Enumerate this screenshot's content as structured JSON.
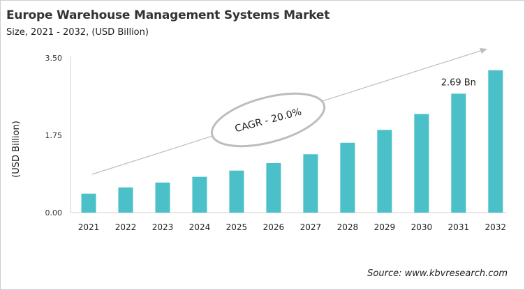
{
  "chart_data": {
    "type": "bar",
    "title": "Europe Warehouse Management Systems Market",
    "subtitle": "Size, 2021 - 2032, (USD Billion)",
    "ylabel": "(USD Billion)",
    "xlabel": "",
    "categories": [
      "2021",
      "2022",
      "2023",
      "2024",
      "2025",
      "2026",
      "2027",
      "2028",
      "2029",
      "2030",
      "2031",
      "2032"
    ],
    "values": [
      0.43,
      0.57,
      0.68,
      0.81,
      0.95,
      1.12,
      1.32,
      1.58,
      1.87,
      2.23,
      2.69,
      3.22
    ],
    "ylim": [
      0,
      3.5
    ],
    "yticks": [
      "0.00",
      "1.75",
      "3.50"
    ],
    "data_labels": [
      {
        "category": "2031",
        "text": "2.69 Bn"
      }
    ],
    "annotation": "CAGR - 20.0%",
    "grid": false,
    "bar_color": "#4bc0c8",
    "source": "Source: www.kbvresearch.com"
  }
}
